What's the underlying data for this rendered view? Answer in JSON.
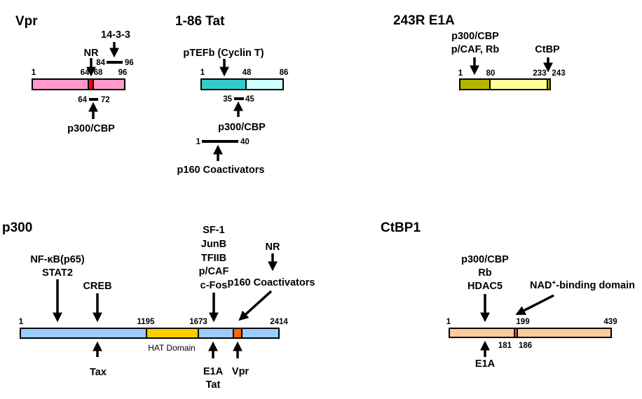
{
  "colors": {
    "vpr_bar": "#FF99CC",
    "vpr_site": "#FF0000",
    "tat_n": "#33CCCC",
    "tat_c": "#CCFFFF",
    "e1a_dark": "#B5B500",
    "e1a_light": "#FFFF99",
    "p300_bar": "#99CCFF",
    "hat": "#FFCC00",
    "p300_vpr": "#FF6600",
    "ctbp_bar": "#FFCC99",
    "ctbp_site": "#FF6600"
  },
  "vpr": {
    "title": "Vpr",
    "binder_1433": "14-3-3",
    "binder_nr": "NR",
    "binder_p300": "p300/CBP",
    "n1": "1",
    "n64": "64",
    "n68": "68",
    "n96": "96",
    "r84": "84",
    "r96": "96",
    "r64": "64",
    "r72": "72"
  },
  "tat": {
    "title": "1-86 Tat",
    "binder_ptefb": "pTEFb (Cyclin T)",
    "binder_p300": "p300/CBP",
    "binder_p160": "p160 Coactivators",
    "n1": "1",
    "n48": "48",
    "n86": "86",
    "r35": "35",
    "r45": "45",
    "r1": "1",
    "r40": "40"
  },
  "e1a": {
    "title": "243R E1A",
    "binder_1": "p300/CBP",
    "binder_2": "p/CAF, Rb",
    "binder_ctbp": "CtBP",
    "n1": "1",
    "n80": "80",
    "n233": "233",
    "n243": "243"
  },
  "p300": {
    "title": "p300",
    "nfkb": "NF-κB(p65)",
    "stat2": "STAT2",
    "creb": "CREB",
    "stack": [
      "SF-1",
      "JunB",
      "TFIIB",
      "p/CAF",
      "c-Fos"
    ],
    "nr": "NR",
    "p160": "p160 Coactivators",
    "n1": "1",
    "n1195": "1195",
    "n1673": "1673",
    "n2414": "2414",
    "hat_label": "HAT Domain",
    "tax": "Tax",
    "e1a": "E1A",
    "tat": "Tat",
    "vpr": "Vpr"
  },
  "ctbp1": {
    "title": "CtBP1",
    "stack": [
      "p300/CBP",
      "Rb",
      "HDAC5"
    ],
    "nad_pre": "NAD",
    "nad_sup": "+",
    "nad_post": "-binding domain",
    "n1": "1",
    "n199": "199",
    "n439": "439",
    "n181": "181",
    "n186": "186",
    "e1a": "E1A"
  }
}
